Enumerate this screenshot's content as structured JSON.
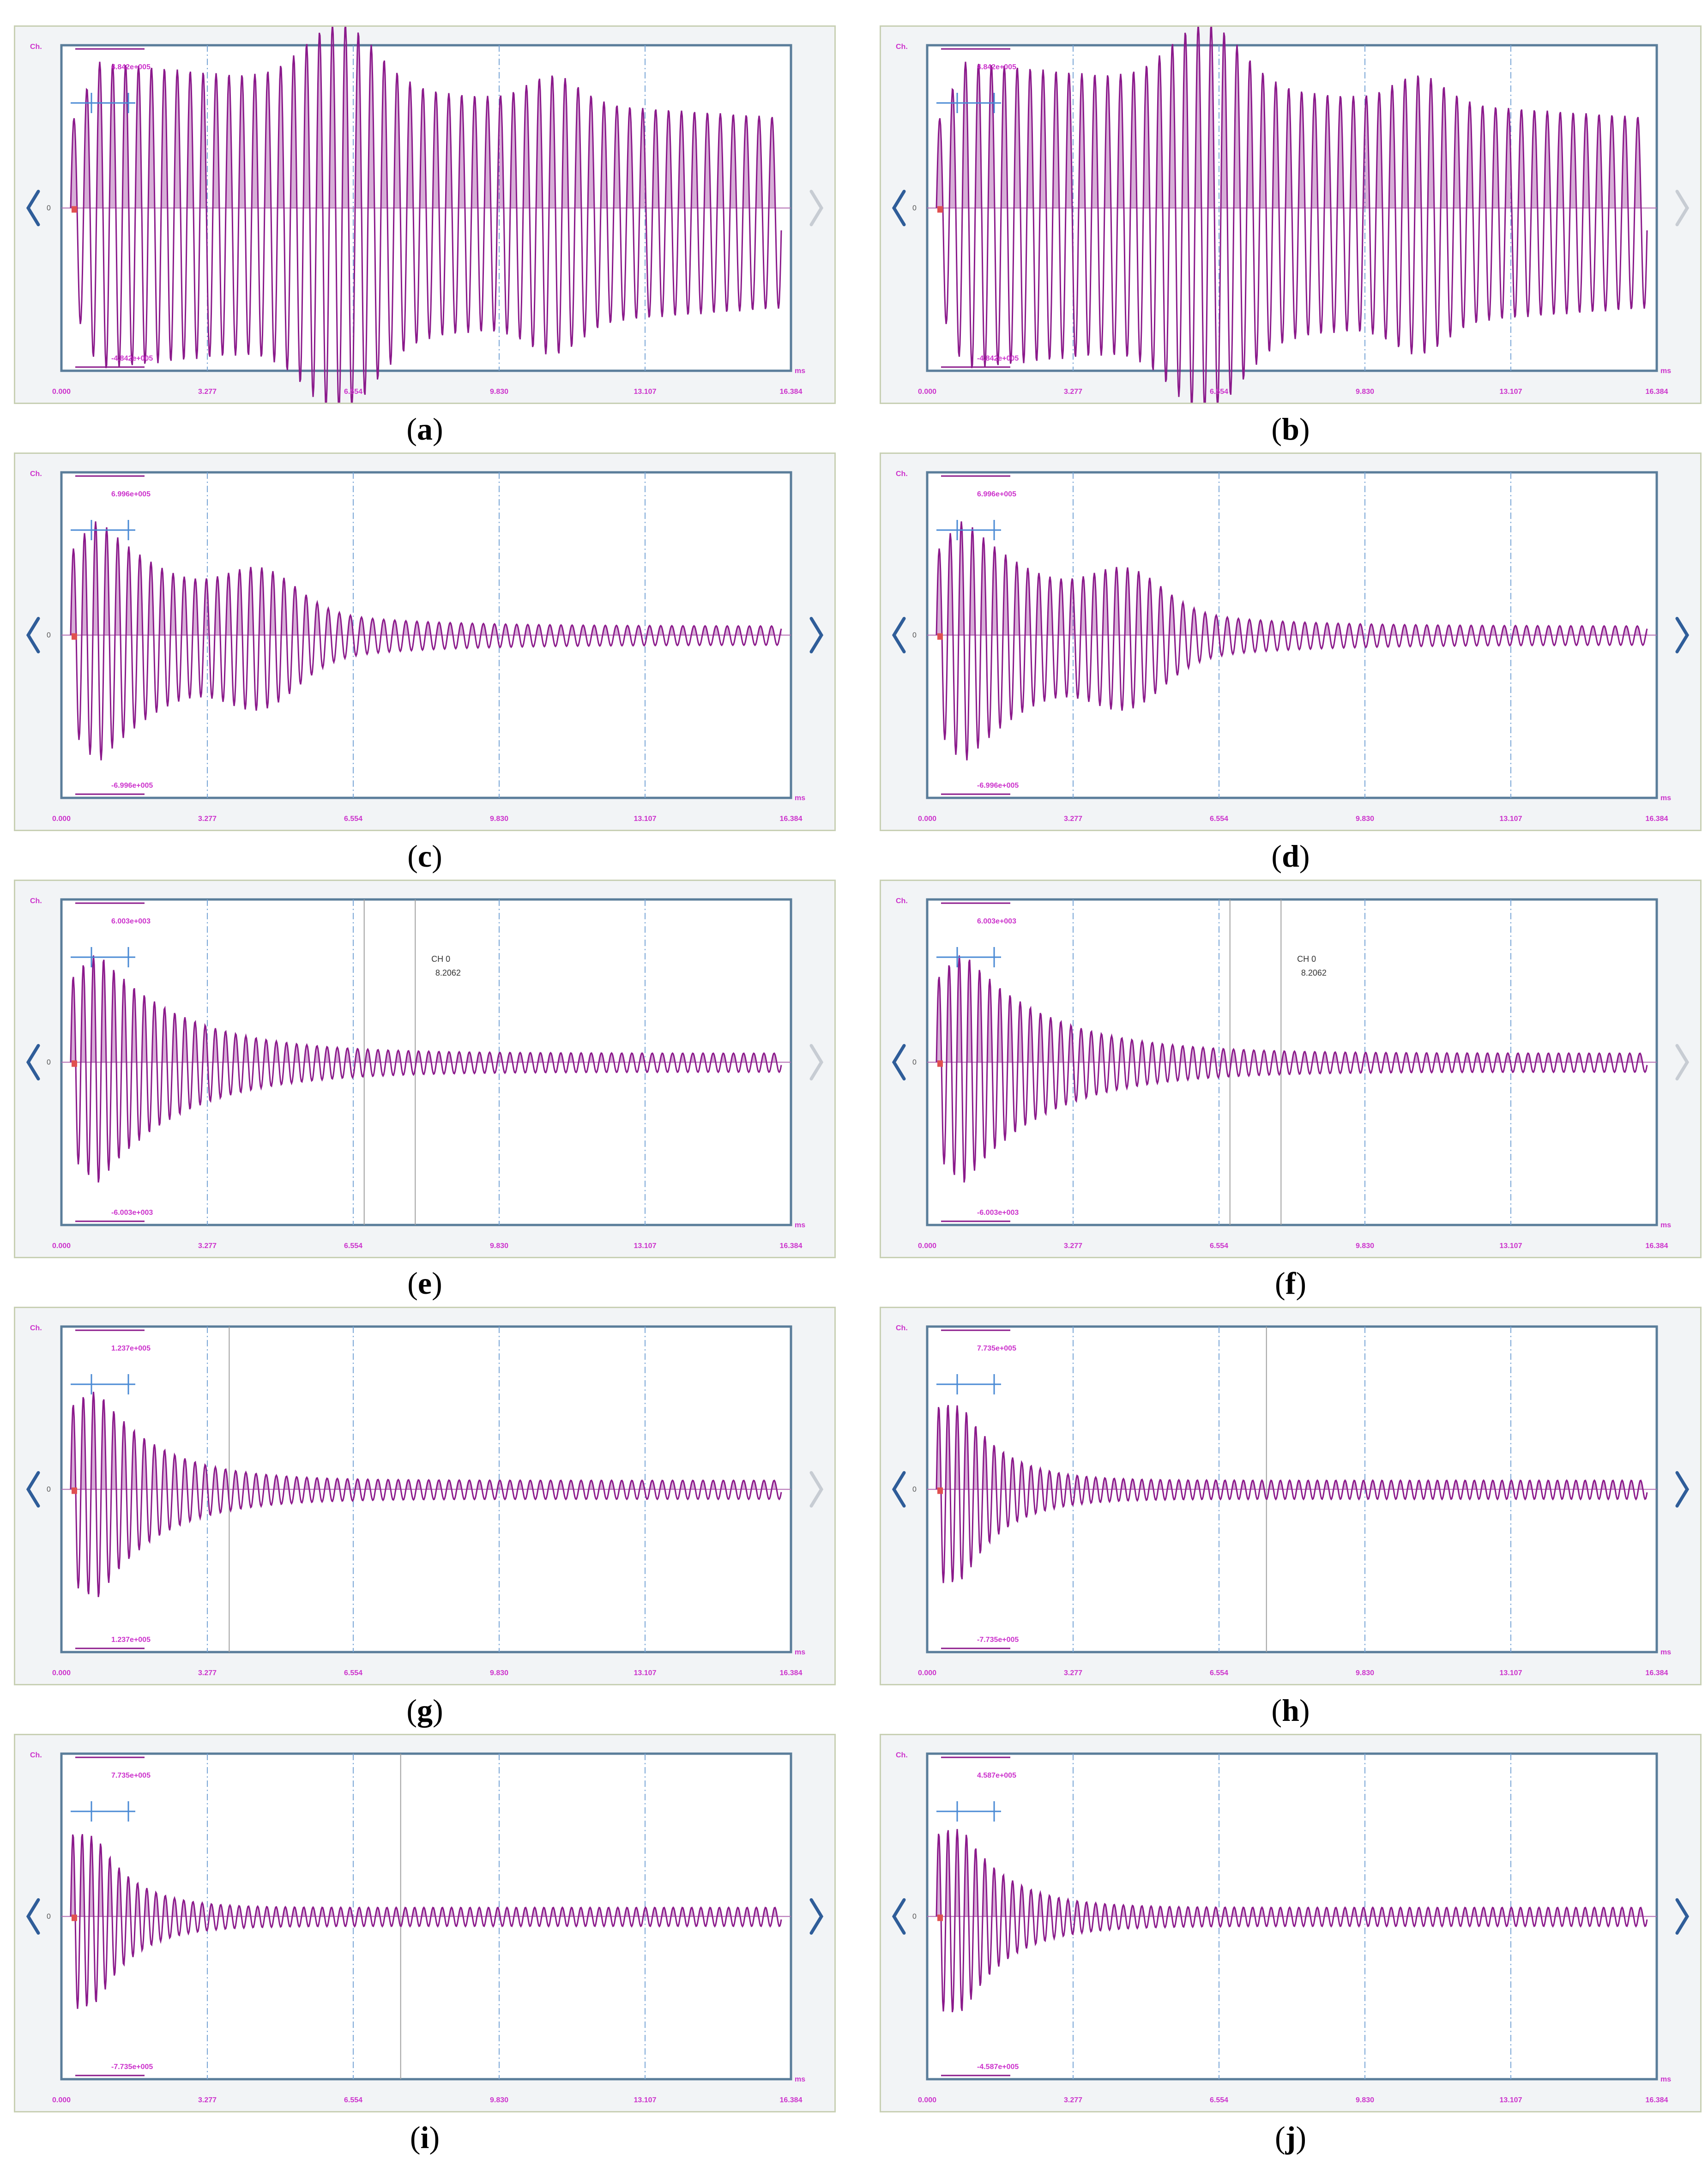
{
  "common": {
    "channel_label": "Ch.",
    "zero_label": "0",
    "unit_label": "ms",
    "x_ticks": [
      "0.000",
      "3.277",
      "6.554",
      "9.830",
      "13.107",
      "16.384"
    ],
    "colors": {
      "signal": "#8b1a8b",
      "frame": "#5a7d9a",
      "gridline": "#7aa6d6",
      "cursor": "#4a8ad4",
      "label": "#cc33cc",
      "nav_active": "#2f5d99",
      "nav_inactive": "#c7ccd3"
    }
  },
  "panels": [
    {
      "letter": "a",
      "max_label": "4.842e+005",
      "min_label": "-4.842e+005",
      "prev_enabled": true,
      "next_enabled": false,
      "cursor_label": "",
      "cursor_value": ""
    },
    {
      "letter": "b",
      "max_label": "4.842e+005",
      "min_label": "-4.842e+005",
      "prev_enabled": true,
      "next_enabled": false,
      "cursor_label": "",
      "cursor_value": ""
    },
    {
      "letter": "c",
      "max_label": "6.996e+005",
      "min_label": "-6.996e+005",
      "prev_enabled": true,
      "next_enabled": true,
      "cursor_label": "",
      "cursor_value": ""
    },
    {
      "letter": "d",
      "max_label": "6.996e+005",
      "min_label": "-6.996e+005",
      "prev_enabled": true,
      "next_enabled": true,
      "cursor_label": "",
      "cursor_value": ""
    },
    {
      "letter": "e",
      "max_label": "6.003e+003",
      "min_label": "-6.003e+003",
      "prev_enabled": true,
      "next_enabled": false,
      "cursor_label": "CH 0",
      "cursor_value": "8.2062"
    },
    {
      "letter": "f",
      "max_label": "6.003e+003",
      "min_label": "-6.003e+003",
      "prev_enabled": true,
      "next_enabled": false,
      "cursor_label": "CH 0",
      "cursor_value": "8.2062"
    },
    {
      "letter": "g",
      "max_label": "1.237e+005",
      "min_label": "1.237e+005",
      "prev_enabled": true,
      "next_enabled": false,
      "cursor_label": "",
      "cursor_value": ""
    },
    {
      "letter": "h",
      "max_label": "7.735e+005",
      "min_label": "-7.735e+005",
      "prev_enabled": true,
      "next_enabled": true,
      "cursor_label": "",
      "cursor_value": ""
    },
    {
      "letter": "i",
      "max_label": "7.735e+005",
      "min_label": "-7.735e+005",
      "prev_enabled": true,
      "next_enabled": true,
      "cursor_label": "",
      "cursor_value": ""
    },
    {
      "letter": "j",
      "max_label": "4.587e+005",
      "min_label": "-4.587e+005",
      "prev_enabled": true,
      "next_enabled": true,
      "cursor_label": "",
      "cursor_value": ""
    }
  ]
}
